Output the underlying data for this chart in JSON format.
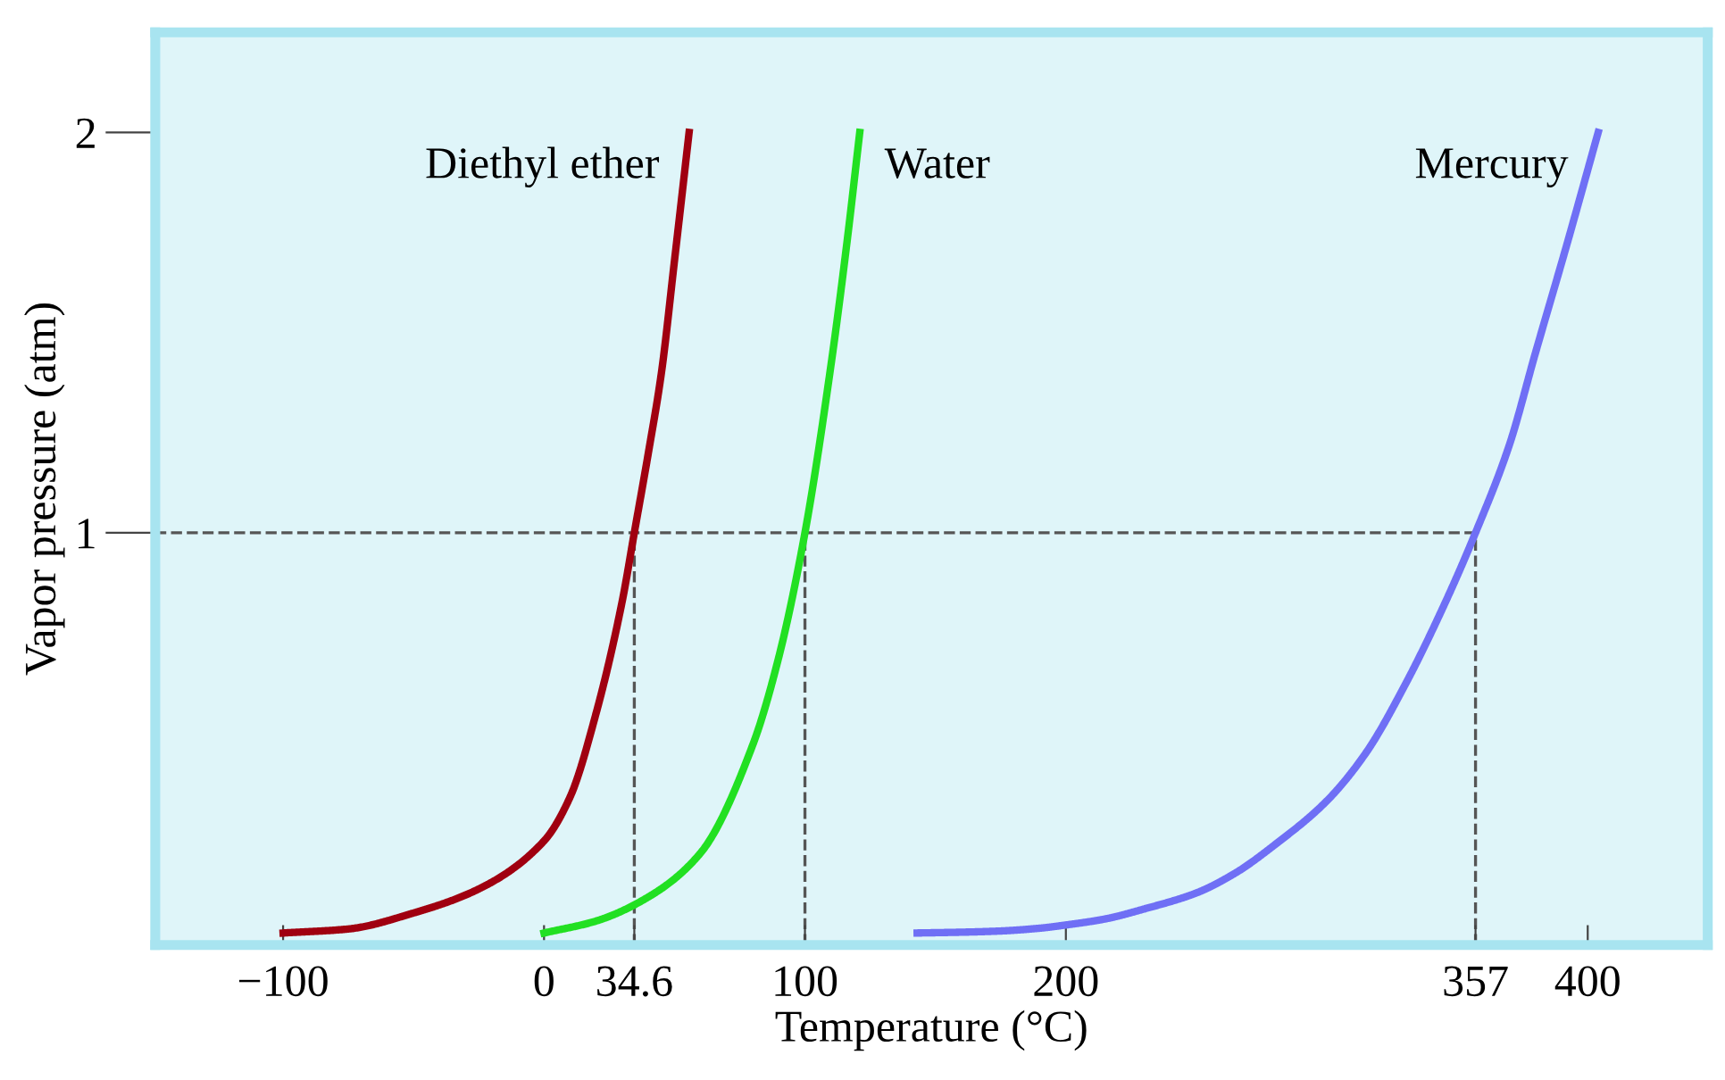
{
  "chart_data": {
    "type": "line",
    "xlabel": "Temperature (°C)",
    "ylabel": "Vapor pressure (atm)",
    "xlim": [
      -149,
      446
    ],
    "ylim": [
      -0.03,
      2.25
    ],
    "xticks": [
      {
        "value": -100,
        "label": "−100"
      },
      0,
      34.6,
      100,
      200,
      357,
      400
    ],
    "yticks": [
      1,
      2
    ],
    "grid": false,
    "marker": "none",
    "line_style": "solid",
    "series": [
      {
        "name": "Diethyl ether",
        "color": "#a00010",
        "x": [
          -100,
          -75,
          -50,
          -25,
          0,
          10,
          20,
          30,
          34.6,
          40,
          45,
          50,
          55.6
        ],
        "values": [
          0,
          0.01,
          0.05,
          0.11,
          0.23,
          0.34,
          0.55,
          0.83,
          1,
          1.2,
          1.4,
          1.68,
          2
        ]
      },
      {
        "name": "Water",
        "color": "#22e022",
        "x": [
          0,
          20,
          40,
          60,
          80,
          90,
          100,
          110,
          116,
          121
        ],
        "values": [
          0,
          0.03,
          0.09,
          0.2,
          0.47,
          0.69,
          1,
          1.42,
          1.72,
          2
        ]
      },
      {
        "name": "Mercury",
        "color": "#6f6ff5",
        "x": [
          143,
          160,
          175,
          190,
          200,
          215,
          230,
          250,
          265,
          280,
          300,
          315,
          330,
          345,
          357,
          370,
          380,
          392,
          404
        ],
        "values": [
          0,
          0.002,
          0.005,
          0.012,
          0.02,
          0.035,
          0.06,
          0.1,
          0.15,
          0.22,
          0.33,
          0.45,
          0.62,
          0.82,
          1,
          1.22,
          1.45,
          1.72,
          2
        ]
      }
    ],
    "ref_lines": [
      {
        "axis": "y",
        "value": 1,
        "color": "#555555",
        "line_style": "dashed"
      },
      {
        "axis": "x",
        "value": 34.6,
        "color": "#555555",
        "line_style": "dashed"
      },
      {
        "axis": "x",
        "value": 100,
        "color": "#555555",
        "line_style": "dashed"
      },
      {
        "axis": "x",
        "value": 357,
        "color": "#555555",
        "line_style": "dashed"
      }
    ]
  }
}
